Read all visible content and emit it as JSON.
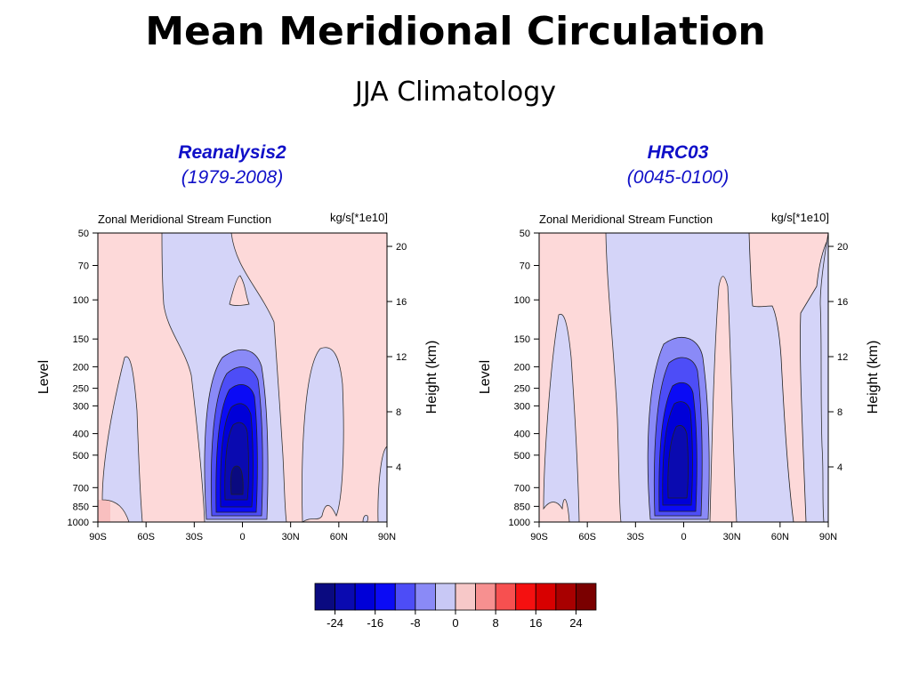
{
  "slide": {
    "title": "Mean Meridional Circulation",
    "subtitle": "JJA Climatology"
  },
  "chart_data": [
    {
      "type": "heatmap",
      "panel_name": "Reanalysis2",
      "panel_period": "(1979-2008)",
      "title": "Zonal Meridional Stream Function",
      "units": "kg/s[*1e10]",
      "xlabel": "",
      "ylabel": "Level",
      "ylabel_right": "Height (km)",
      "x_ticks": [
        "90S",
        "60S",
        "30S",
        "0",
        "30N",
        "60N",
        "90N"
      ],
      "x_range": [
        -90,
        90
      ],
      "y_ticks": [
        50,
        70,
        100,
        150,
        200,
        250,
        300,
        400,
        500,
        700,
        850,
        1000
      ],
      "y_range": [
        1000,
        50
      ],
      "y_scale": "log",
      "y_right_ticks": [
        4,
        8,
        12,
        16,
        20
      ],
      "features": [
        {
          "kind": "negative",
          "min_value": -24,
          "lat_range": [
            -20,
            5
          ],
          "level_range": [
            170,
            1000
          ]
        },
        {
          "kind": "negative",
          "min_value": -4,
          "lat_range": [
            -50,
            25
          ],
          "level_range": [
            50,
            1000
          ]
        },
        {
          "kind": "negative",
          "min_value": -4,
          "lat_range": [
            -80,
            -65
          ],
          "level_range": [
            190,
            900
          ]
        },
        {
          "kind": "negative",
          "min_value": -4,
          "lat_range": [
            40,
            60
          ],
          "level_range": [
            180,
            1000
          ]
        },
        {
          "kind": "positive",
          "max_value": 4,
          "lat_range": [
            -90,
            90
          ],
          "level_range": [
            50,
            1000
          ]
        }
      ]
    },
    {
      "type": "heatmap",
      "panel_name": "HRC03",
      "panel_period": "(0045-0100)",
      "title": "Zonal Meridional Stream Function",
      "units": "kg/s[*1e10]",
      "xlabel": "",
      "ylabel": "Level",
      "ylabel_right": "Height (km)",
      "x_ticks": [
        "90S",
        "60S",
        "30S",
        "0",
        "30N",
        "60N",
        "90N"
      ],
      "x_range": [
        -90,
        90
      ],
      "y_ticks": [
        50,
        70,
        100,
        150,
        200,
        250,
        300,
        400,
        500,
        700,
        850,
        1000
      ],
      "y_range": [
        1000,
        50
      ],
      "y_scale": "log",
      "y_right_ticks": [
        4,
        8,
        12,
        16,
        20
      ],
      "features": [
        {
          "kind": "negative",
          "min_value": -24,
          "lat_range": [
            -20,
            5
          ],
          "level_range": [
            150,
            1000
          ]
        },
        {
          "kind": "negative",
          "min_value": -4,
          "lat_range": [
            -50,
            40
          ],
          "level_range": [
            50,
            1000
          ]
        },
        {
          "kind": "negative",
          "min_value": -4,
          "lat_range": [
            70,
            90
          ],
          "level_range": [
            50,
            1000
          ]
        },
        {
          "kind": "positive",
          "max_value": 4,
          "lat_range": [
            -90,
            -50
          ],
          "level_range": [
            50,
            1000
          ]
        },
        {
          "kind": "positive",
          "max_value": 4,
          "lat_range": [
            20,
            35
          ],
          "level_range": [
            70,
            1000
          ]
        },
        {
          "kind": "positive",
          "max_value": 4,
          "lat_range": [
            60,
            75
          ],
          "level_range": [
            50,
            1000
          ]
        }
      ]
    }
  ],
  "colorbar": {
    "labels": [
      "-24",
      "-16",
      "-8",
      "0",
      "8",
      "16",
      "24"
    ],
    "colors": [
      "#0a0a80",
      "#0a0ab0",
      "#0000d8",
      "#0b0bf5",
      "#4d4df7",
      "#8a8af7",
      "#c8c8f5",
      "#f7c8c8",
      "#f79090",
      "#f75050",
      "#f51010",
      "#d80000",
      "#a80000",
      "#7a0000"
    ]
  },
  "colors": {
    "panel_title": "#1010c8",
    "pos_weak": "#fdd9d9",
    "neg_weak": "#d4d4f8"
  }
}
